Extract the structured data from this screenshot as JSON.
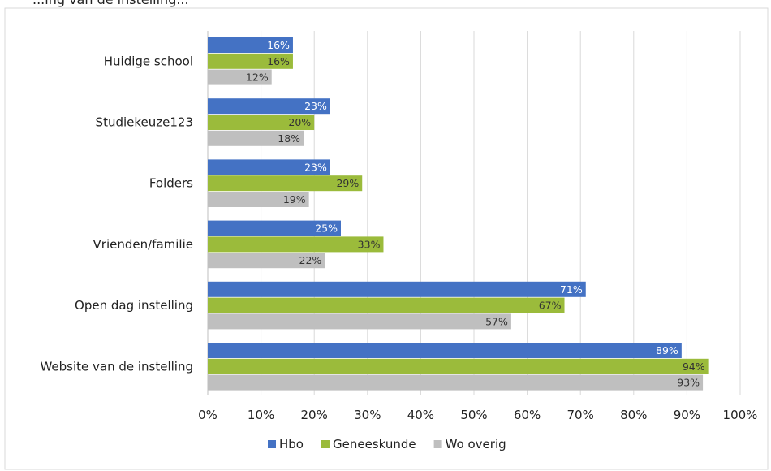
{
  "header": {
    "partial_text": "...ing van de instelling..."
  },
  "chart_data": {
    "type": "bar",
    "orientation": "horizontal",
    "categories": [
      "Huidige school",
      "Studiekeuze123",
      "Folders",
      "Vrienden/familie",
      "Open dag instelling",
      "Website van de instelling"
    ],
    "series": [
      {
        "name": "Hbo",
        "color": "#4472C4",
        "label_color": "#ffffff",
        "values": [
          16,
          23,
          23,
          25,
          71,
          89
        ]
      },
      {
        "name": "Geneeskunde",
        "color": "#9BBB3B",
        "label_color": "#333333",
        "values": [
          16,
          20,
          29,
          33,
          67,
          94
        ]
      },
      {
        "name": "Wo overig",
        "color": "#BFBFBF",
        "label_color": "#333333",
        "values": [
          12,
          18,
          19,
          22,
          57,
          93
        ]
      }
    ],
    "xlim": [
      0,
      100
    ],
    "xticks": [
      0,
      10,
      20,
      30,
      40,
      50,
      60,
      70,
      80,
      90,
      100
    ],
    "tick_suffix": "%",
    "value_suffix": "%",
    "grid": true,
    "legend_position": "bottom"
  }
}
